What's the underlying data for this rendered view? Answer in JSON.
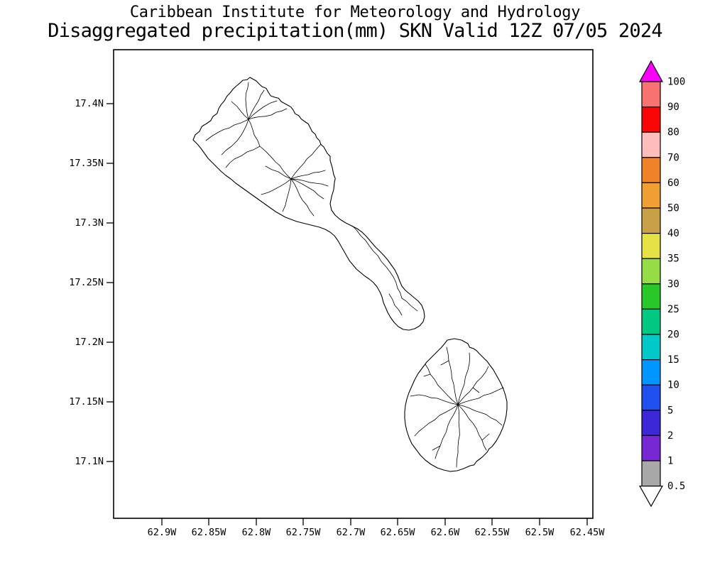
{
  "header": {
    "line1": "Caribbean Institute for Meteorology and Hydrology",
    "line2": "Disaggregated precipitation(mm) SKN Valid 12Z 07/05 2024"
  },
  "axes": {
    "lat_labels": [
      "17.4N",
      "17.35N",
      "17.3N",
      "17.25N",
      "17.2N",
      "17.15N",
      "17.1N"
    ],
    "lon_labels": [
      "62.9W",
      "62.85W",
      "62.8W",
      "62.75W",
      "62.7W",
      "62.65W",
      "62.6W",
      "62.55W",
      "62.5W",
      "62.45W"
    ]
  },
  "legend": {
    "boundary_labels": [
      "100",
      "90",
      "80",
      "70",
      "60",
      "50",
      "40",
      "35",
      "30",
      "25",
      "20",
      "15",
      "10",
      "5",
      "2",
      "1",
      "0.5"
    ],
    "segment_colors_top_to_bottom": [
      "#f87272",
      "#fb0606",
      "#ffbcbc",
      "#f08228",
      "#f0a032",
      "#c8a048",
      "#e6e246",
      "#96dc46",
      "#28c828",
      "#00c882",
      "#00c8c8",
      "#0096ff",
      "#2050f0",
      "#3c28d7",
      "#7828d2",
      "#a8a8a8"
    ],
    "overflow_color": "#fa00fa",
    "underflow_color": "#ffffff"
  }
}
